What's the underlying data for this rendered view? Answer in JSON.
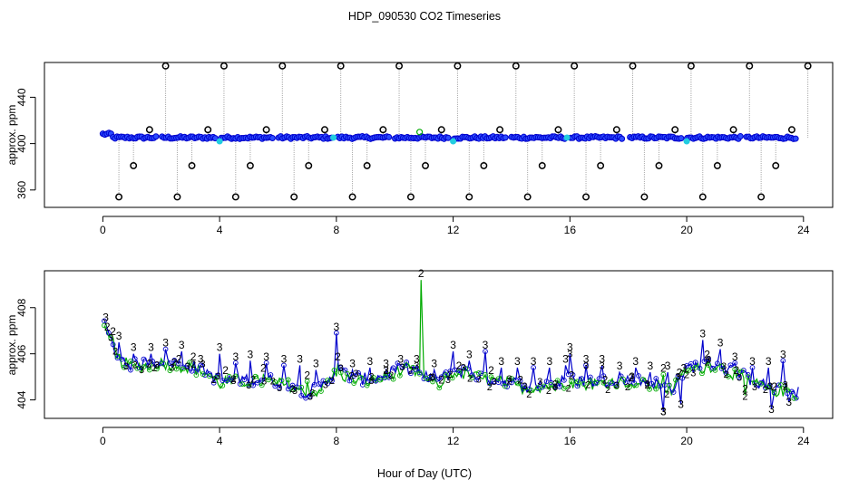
{
  "figure": {
    "title": "HDP_090530  CO2 Timeseries",
    "xlabel": "Hour of Day (UTC)"
  },
  "chart_data": [
    {
      "type": "scatter",
      "panel": "top",
      "ylabel": "approx. ppm",
      "xlim": [
        -2,
        25
      ],
      "ylim": [
        345,
        470
      ],
      "xticks": [
        0,
        4,
        8,
        12,
        16,
        20,
        24
      ],
      "yticks": [
        360,
        400,
        440
      ],
      "baseline_ppm": 405.2,
      "cycle_period_h": 2,
      "spike_ppm": 467,
      "dip_ppm": 354,
      "cal_high_ppm": 412,
      "cal_low_ppm": 381,
      "cal_mid_ppm": 402,
      "colors": {
        "ambient": "#0000cc",
        "ambient_fill": "#2b4cff",
        "calibration": "#000000",
        "flush": "#22cce0",
        "drop_line": "#aaaaaa",
        "green": "#00aa00"
      }
    },
    {
      "type": "line",
      "panel": "bottom",
      "ylabel": "approx. ppm",
      "xlim": [
        -2,
        25
      ],
      "ylim": [
        403.2,
        409.6
      ],
      "xticks": [
        0,
        4,
        8,
        12,
        16,
        20,
        24
      ],
      "yticks": [
        404,
        406,
        408
      ],
      "series": [
        {
          "name": "3",
          "color": "#0000cc"
        },
        {
          "name": "2",
          "color": "#00aa00"
        }
      ],
      "x": [
        0,
        0.5,
        1,
        1.5,
        2,
        2.5,
        3,
        3.5,
        4,
        4.5,
        5,
        5.5,
        6,
        6.5,
        7,
        7.5,
        8,
        8.5,
        9,
        9.5,
        10,
        10.5,
        11,
        11.5,
        12,
        12.5,
        13,
        13.5,
        14,
        14.5,
        15,
        15.5,
        16,
        16.5,
        17,
        17.5,
        18,
        18.5,
        19,
        19.5,
        20,
        20.5,
        21,
        21.5,
        22,
        22.5,
        23,
        23.5,
        23.8
      ],
      "y": [
        407.3,
        405.9,
        405.5,
        405.6,
        405.7,
        405.6,
        405.5,
        405.3,
        404.8,
        404.9,
        404.9,
        404.9,
        404.8,
        404.7,
        404.3,
        404.6,
        405.3,
        405.0,
        404.9,
        405.0,
        405.3,
        405.4,
        405.0,
        404.8,
        405.3,
        405.2,
        405.0,
        404.9,
        404.8,
        404.6,
        404.7,
        404.7,
        404.9,
        404.8,
        404.8,
        404.9,
        404.9,
        404.8,
        404.7,
        404.5,
        405.4,
        405.5,
        405.6,
        405.3,
        405.0,
        404.7,
        404.5,
        404.5,
        404.3
      ],
      "spikes_3": [
        [
          0.1,
          407.3
        ],
        [
          0.55,
          406.5
        ],
        [
          1.05,
          406.0
        ],
        [
          1.65,
          406.0
        ],
        [
          2.15,
          406.2
        ],
        [
          2.7,
          406.1
        ],
        [
          3.35,
          405.5
        ],
        [
          4.0,
          406.0
        ],
        [
          4.55,
          405.6
        ],
        [
          5.05,
          405.7
        ],
        [
          5.6,
          405.6
        ],
        [
          6.2,
          405.5
        ],
        [
          6.75,
          405.5
        ],
        [
          7.3,
          405.3
        ],
        [
          8.0,
          406.9
        ],
        [
          8.55,
          405.3
        ],
        [
          9.15,
          405.4
        ],
        [
          9.7,
          405.3
        ],
        [
          10.2,
          405.5
        ],
        [
          10.75,
          405.5
        ],
        [
          11.35,
          405.3
        ],
        [
          12.0,
          406.1
        ],
        [
          12.55,
          405.7
        ],
        [
          13.1,
          406.1
        ],
        [
          13.65,
          405.4
        ],
        [
          14.2,
          405.4
        ],
        [
          14.75,
          405.4
        ],
        [
          15.3,
          405.4
        ],
        [
          15.85,
          405.5
        ],
        [
          16.0,
          406.0
        ],
        [
          16.55,
          405.5
        ],
        [
          17.1,
          405.5
        ],
        [
          17.7,
          405.2
        ],
        [
          18.25,
          405.4
        ],
        [
          18.75,
          405.2
        ],
        [
          19.35,
          405.2
        ],
        [
          19.9,
          405.1
        ],
        [
          20.55,
          406.6
        ],
        [
          21.15,
          406.2
        ],
        [
          21.65,
          405.6
        ],
        [
          22.25,
          405.4
        ],
        [
          22.8,
          405.4
        ],
        [
          23.3,
          405.7
        ]
      ],
      "spikes_2": [
        [
          0.15,
          406.9
        ],
        [
          0.35,
          406.7
        ],
        [
          1.6,
          405.3
        ],
        [
          2.6,
          405.5
        ],
        [
          3.1,
          405.6
        ],
        [
          4.2,
          405.0
        ],
        [
          5.5,
          405.1
        ],
        [
          7.0,
          404.8
        ],
        [
          8.05,
          405.6
        ],
        [
          9.7,
          405.0
        ],
        [
          10.9,
          409.2
        ],
        [
          11.6,
          404.6
        ],
        [
          12.2,
          405.2
        ],
        [
          13.3,
          405.0
        ],
        [
          14.3,
          404.6
        ],
        [
          15.5,
          404.4
        ],
        [
          16.05,
          404.8
        ],
        [
          17.2,
          404.6
        ],
        [
          18.1,
          404.7
        ],
        [
          19.2,
          405.1
        ],
        [
          19.75,
          404.9
        ],
        [
          20.7,
          405.7
        ],
        [
          21.7,
          405.0
        ],
        [
          22.0,
          404.2
        ],
        [
          23.0,
          404.3
        ]
      ],
      "dips": [
        [
          19.2,
          403.5
        ],
        [
          19.8,
          403.8
        ],
        [
          22.9,
          403.6
        ],
        [
          23.5,
          403.9
        ]
      ]
    }
  ]
}
